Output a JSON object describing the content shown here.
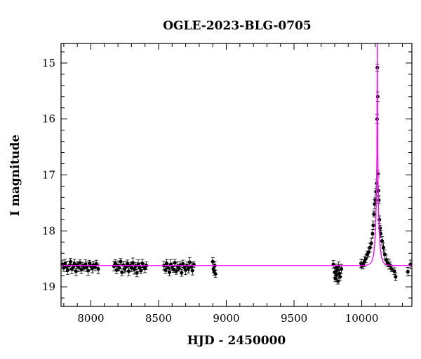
{
  "chart_data": {
    "type": "scatter",
    "title": "OGLE-2023-BLG-0705",
    "xlabel": "HJD - 2450000",
    "ylabel": "I magnitude",
    "xlim": [
      7780,
      10370
    ],
    "ylim": [
      19.35,
      14.65
    ],
    "y_inverted": true,
    "xticks": [
      8000,
      8500,
      9000,
      9500,
      10000
    ],
    "yticks": [
      15,
      16,
      17,
      18,
      19
    ],
    "colors": {
      "points": "#000000",
      "model": "#ff00ff",
      "axes": "#000000"
    },
    "baseline_mag": 18.62,
    "peak": {
      "x": 10115,
      "y": 15.08
    },
    "series": [
      {
        "marker": "circle",
        "errorbars": true,
        "x": [
          7790,
          7800,
          7810,
          7820,
          7830,
          7840,
          7850,
          7860,
          7870,
          7880,
          7890,
          7900,
          7910,
          7920,
          7930,
          7940,
          7950,
          7960,
          7970,
          7980,
          7990,
          8000,
          8010,
          8020,
          8030,
          8040,
          8055,
          8170,
          8180,
          8190,
          8200,
          8210,
          8220,
          8230,
          8240,
          8250,
          8260,
          8270,
          8280,
          8290,
          8300,
          8310,
          8320,
          8330,
          8340,
          8350,
          8360,
          8370,
          8380,
          8390,
          8400,
          8410,
          8540,
          8550,
          8560,
          8570,
          8580,
          8590,
          8600,
          8610,
          8620,
          8630,
          8640,
          8650,
          8660,
          8670,
          8680,
          8690,
          8700,
          8710,
          8720,
          8730,
          8740,
          8750,
          8760,
          8900,
          8905,
          8910,
          8915,
          8920,
          9790,
          9800,
          9805,
          9810,
          9815,
          9820,
          9825,
          9830,
          9835,
          9840,
          9850,
          9995,
          10000,
          10010,
          10020,
          10030,
          10040,
          10050,
          10060,
          10070,
          10080,
          10085,
          10090,
          10095,
          10100,
          10105,
          10110,
          10113,
          10115,
          10118,
          10120,
          10123,
          10126,
          10130,
          10135,
          10140,
          10150,
          10160,
          10170,
          10180,
          10190,
          10200,
          10210,
          10220,
          10240,
          10250,
          10340,
          10360
        ],
        "y": [
          18.6,
          18.66,
          18.58,
          18.64,
          18.7,
          18.62,
          18.55,
          18.68,
          18.63,
          18.59,
          18.72,
          18.61,
          18.65,
          18.57,
          18.69,
          18.62,
          18.66,
          18.6,
          18.64,
          18.71,
          18.58,
          18.63,
          18.67,
          18.61,
          18.65,
          18.59,
          18.68,
          18.63,
          18.58,
          18.7,
          18.62,
          18.66,
          18.55,
          18.74,
          18.61,
          18.68,
          18.64,
          18.59,
          18.72,
          18.62,
          18.66,
          18.57,
          18.69,
          18.63,
          18.75,
          18.6,
          18.65,
          18.71,
          18.58,
          18.64,
          18.67,
          18.62,
          18.62,
          18.7,
          18.58,
          18.66,
          18.74,
          18.6,
          18.64,
          18.69,
          18.57,
          18.72,
          18.63,
          18.67,
          18.61,
          18.75,
          18.59,
          18.65,
          18.7,
          18.62,
          18.68,
          18.56,
          18.64,
          18.71,
          18.6,
          18.55,
          18.68,
          18.72,
          18.62,
          18.77,
          18.6,
          18.74,
          18.85,
          18.66,
          18.79,
          18.7,
          18.9,
          18.63,
          18.76,
          18.82,
          18.68,
          18.58,
          18.62,
          18.6,
          18.55,
          18.5,
          18.42,
          18.38,
          18.3,
          18.22,
          18.05,
          17.9,
          17.7,
          17.52,
          17.45,
          17.3,
          17.15,
          16.0,
          15.08,
          15.6,
          16.98,
          17.28,
          17.45,
          17.8,
          17.95,
          18.05,
          18.18,
          18.3,
          18.42,
          18.52,
          18.57,
          18.6,
          18.62,
          18.68,
          18.72,
          18.82,
          18.73,
          18.6
        ]
      }
    ],
    "model": {
      "type": "pspl",
      "t0": 10115,
      "tE": 22,
      "u0": 0.012,
      "baseline_mag": 18.62
    }
  }
}
